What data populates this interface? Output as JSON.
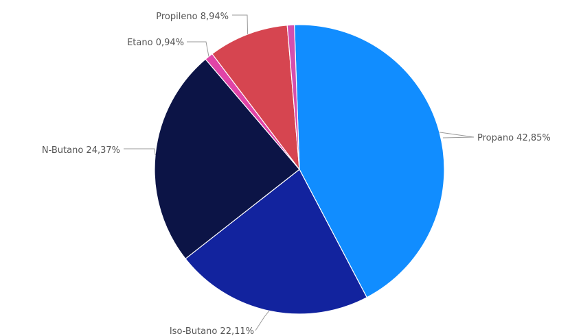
{
  "chart_data": {
    "type": "pie",
    "title": "",
    "start_angle_deg": -2,
    "direction": "clockwise",
    "slices": [
      {
        "name": "Propano",
        "value": 42.85,
        "label": "Propano 42,85%",
        "color": "#118DFF"
      },
      {
        "name": "Iso-Butano",
        "value": 22.11,
        "label": "Iso-Butano 22,11%",
        "color": "#12239E"
      },
      {
        "name": "N-Butano",
        "value": 24.37,
        "label": "N-Butano 24,37%",
        "color": "#0C1446"
      },
      {
        "name": "Etano",
        "value": 0.94,
        "label": "Etano 0,94%",
        "color": "#E044A7"
      },
      {
        "name": "Propileno",
        "value": 8.94,
        "label": "Propileno 8,94%",
        "color": "#D64550"
      },
      {
        "name": "",
        "value": 0.79,
        "label": "",
        "color": "#D44FAE"
      }
    ]
  }
}
